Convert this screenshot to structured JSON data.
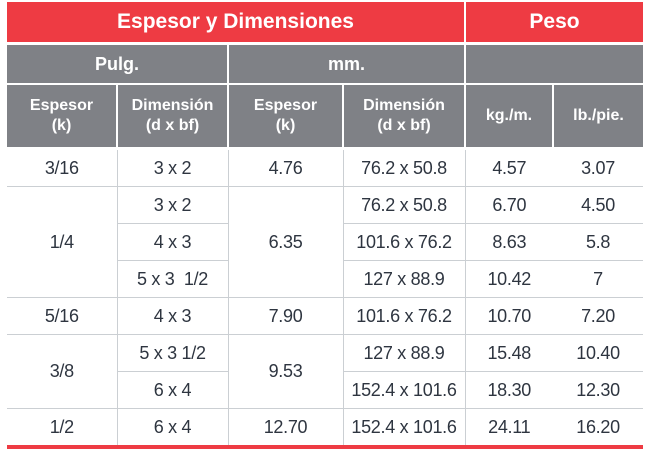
{
  "colors": {
    "accent_red": "#ee3b43",
    "header_gray": "#7f8186",
    "data_text": "#2e3540",
    "grid_line": "#cbcfd3"
  },
  "table": {
    "top_headers": [
      {
        "label": "Espesor y Dimensiones",
        "colspan": 4
      },
      {
        "label": "Peso",
        "colspan": 2
      }
    ],
    "unit_headers": [
      {
        "label": "Pulg.",
        "colspan": 2
      },
      {
        "label": "mm.",
        "colspan": 2
      },
      {
        "label": "",
        "colspan": 2
      }
    ],
    "column_headers": [
      {
        "line1": "Espesor",
        "line2": "(k)"
      },
      {
        "line1": "Dimensión",
        "line2": "(d x bf)"
      },
      {
        "line1": "Espesor",
        "line2": "(k)"
      },
      {
        "line1": "Dimensión",
        "line2": "(d x bf)"
      },
      {
        "line1": "kg./m.",
        "line2": ""
      },
      {
        "line1": "lb./pie.",
        "line2": ""
      }
    ],
    "groups": [
      {
        "espesor_pulg": "3/16",
        "espesor_mm": "4.76",
        "rows": [
          {
            "dim_pulg": "3 x 2",
            "dim_mm": "76.2 x 50.8",
            "kg_m": "4.57",
            "lb_pie": "3.07"
          }
        ]
      },
      {
        "espesor_pulg": "1/4",
        "espesor_mm": "6.35",
        "rows": [
          {
            "dim_pulg": "3 x 2",
            "dim_mm": "76.2 x 50.8",
            "kg_m": "6.70",
            "lb_pie": "4.50"
          },
          {
            "dim_pulg": "4 x 3",
            "dim_mm": "101.6 x 76.2",
            "kg_m": "8.63",
            "lb_pie": "5.8"
          },
          {
            "dim_pulg": "5 x 3  1/2",
            "dim_mm": "127 x 88.9",
            "kg_m": "10.42",
            "lb_pie": "7"
          }
        ]
      },
      {
        "espesor_pulg": "5/16",
        "espesor_mm": "7.90",
        "rows": [
          {
            "dim_pulg": "4 x 3",
            "dim_mm": "101.6 x 76.2",
            "kg_m": "10.70",
            "lb_pie": "7.20"
          }
        ]
      },
      {
        "espesor_pulg": "3/8",
        "espesor_mm": "9.53",
        "rows": [
          {
            "dim_pulg": "5 x 3 1/2",
            "dim_mm": "127 x 88.9",
            "kg_m": "15.48",
            "lb_pie": "10.40"
          },
          {
            "dim_pulg": "6 x 4",
            "dim_mm": "152.4 x 101.6",
            "kg_m": "18.30",
            "lb_pie": "12.30"
          }
        ]
      },
      {
        "espesor_pulg": "1/2",
        "espesor_mm": "12.70",
        "rows": [
          {
            "dim_pulg": "6 x 4",
            "dim_mm": "152.4 x 101.6",
            "kg_m": "24.11",
            "lb_pie": "16.20"
          }
        ]
      }
    ]
  }
}
